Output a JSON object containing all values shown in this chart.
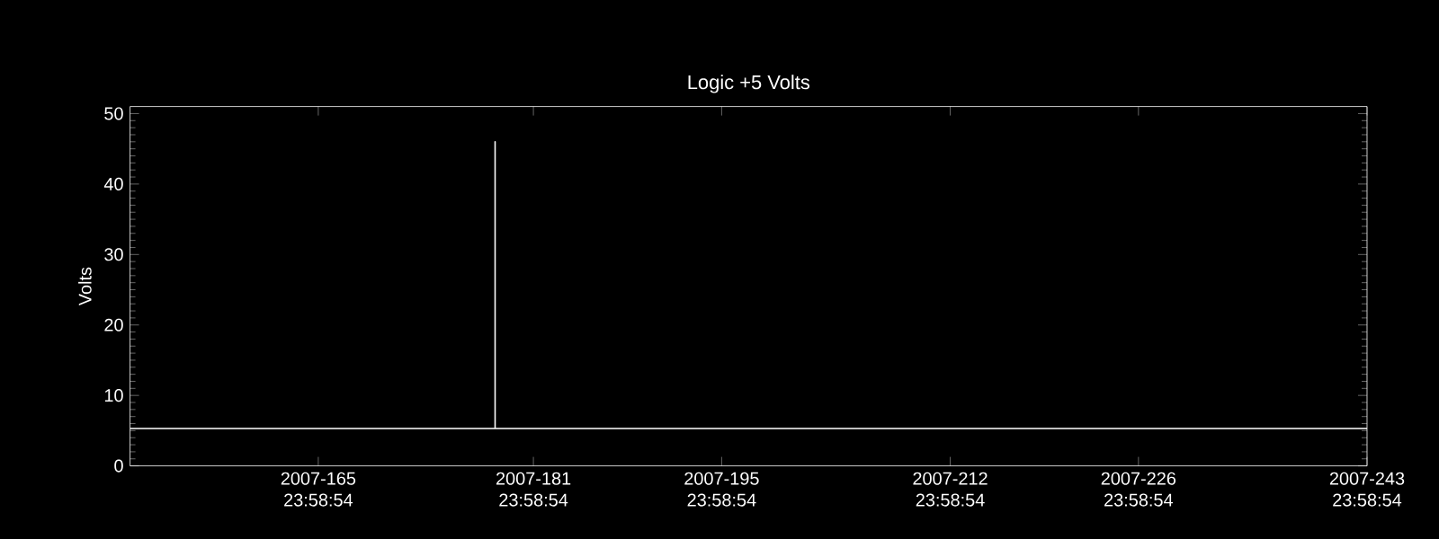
{
  "chart_data": {
    "type": "line",
    "title": "Logic +5 Volts",
    "ylabel": "Volts",
    "x": [
      "2007-06-01",
      "2007-06-28T03:36",
      "2007-06-28T03:36",
      "2007-06-28T03:36",
      "2007-09-01"
    ],
    "series": [
      {
        "color": "#ffffff",
        "values": [
          5.3,
          5.3,
          46,
          5.3,
          5.3
        ]
      }
    ],
    "xlim": [
      "2007-06-01",
      "2007-09-01"
    ],
    "xticks": [
      {
        "value": "2007-06-14T23:58:54",
        "label": "2007-165 23:58:54"
      },
      {
        "value": "2007-06-30T23:58:54",
        "label": "2007-181 23:58:54"
      },
      {
        "value": "2007-07-14T23:58:54",
        "label": "2007-195 23:58:54"
      },
      {
        "value": "2007-07-31T23:58:54",
        "label": "2007-212 23:58:54"
      },
      {
        "value": "2007-08-14T23:58:54",
        "label": "2007-226 23:58:54"
      },
      {
        "value": "2007-08-31T23:58:54",
        "label": "2007-243 23:58:54"
      }
    ],
    "ylim": [
      0,
      51
    ],
    "yticks": [
      0,
      10,
      20,
      30,
      40,
      50
    ],
    "grid": false,
    "marker": "none",
    "line_style": "solid"
  }
}
